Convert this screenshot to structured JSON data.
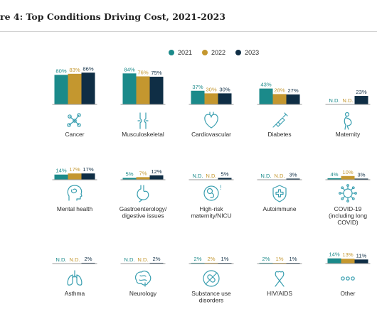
{
  "title": "re 4: Top Conditions Driving Cost, 2021-2023",
  "colors": {
    "2021": "#1b8a8a",
    "2022": "#c4972f",
    "2023": "#0f2e45",
    "icon": "#3a9fb0",
    "axis": "#9a9a9a"
  },
  "legend": [
    "2021",
    "2022",
    "2023"
  ],
  "chart_data": {
    "type": "bar",
    "title": "re 4: Top Conditions Driving Cost, 2021-2023",
    "series_names": [
      "2021",
      "2022",
      "2023"
    ],
    "ylim": [
      0,
      100
    ],
    "categories": [
      {
        "name": "Cancer",
        "label_lines": [
          "Cancer"
        ],
        "icon": "molecule-icon",
        "values": [
          80,
          83,
          86
        ],
        "labels": [
          "80%",
          "83%",
          "86%"
        ]
      },
      {
        "name": "Musculoskeletal",
        "label_lines": [
          "Musculoskeletal"
        ],
        "icon": "joint-icon",
        "values": [
          84,
          76,
          75
        ],
        "labels": [
          "84%",
          "76%",
          "75%"
        ]
      },
      {
        "name": "Cardiovascular",
        "label_lines": [
          "Cardiovascular"
        ],
        "icon": "heart-icon",
        "values": [
          37,
          30,
          30
        ],
        "labels": [
          "37%",
          "30%",
          "30%"
        ]
      },
      {
        "name": "Diabetes",
        "label_lines": [
          "Diabetes"
        ],
        "icon": "syringe-icon",
        "values": [
          43,
          28,
          27
        ],
        "labels": [
          "43%",
          "28%",
          "27%"
        ]
      },
      {
        "name": "Maternity",
        "label_lines": [
          "Maternity"
        ],
        "icon": "pregnancy-icon",
        "values": [
          null,
          null,
          23
        ],
        "labels": [
          "N.D.",
          "N.D.",
          "23%"
        ]
      },
      {
        "name": "Mental health",
        "label_lines": [
          "Mental health"
        ],
        "icon": "head-icon",
        "values": [
          14,
          17,
          17
        ],
        "labels": [
          "14%",
          "17%",
          "17%"
        ]
      },
      {
        "name": "Gastroenterology/ digestive issues",
        "label_lines": [
          "Gastroenterology/",
          "digestive issues"
        ],
        "icon": "stomach-icon",
        "values": [
          5,
          7,
          12
        ],
        "labels": [
          "5%",
          "7%",
          "12%"
        ]
      },
      {
        "name": "High-risk maternity/NICU",
        "label_lines": [
          "High-risk",
          "maternity/NICU"
        ],
        "icon": "fetus-icon",
        "values": [
          null,
          null,
          5
        ],
        "labels": [
          "N.D.",
          "N.D.",
          "5%"
        ]
      },
      {
        "name": "Autoimmune",
        "label_lines": [
          "Autoimmune"
        ],
        "icon": "shield-cross-icon",
        "values": [
          null,
          null,
          3
        ],
        "labels": [
          "N.D.",
          "N.D.",
          "3%"
        ]
      },
      {
        "name": "COVID-19 (including long COVID)",
        "label_lines": [
          "COVID-19",
          "(including long",
          "COVID)"
        ],
        "icon": "virus-icon",
        "values": [
          4,
          10,
          3
        ],
        "labels": [
          "4%",
          "10%",
          "3%"
        ]
      },
      {
        "name": "Asthma",
        "label_lines": [
          "Asthma"
        ],
        "icon": "lungs-icon",
        "values": [
          null,
          null,
          2
        ],
        "labels": [
          "N.D.",
          "N.D.",
          "2%"
        ]
      },
      {
        "name": "Neurology",
        "label_lines": [
          "Neurology"
        ],
        "icon": "brain-icon",
        "values": [
          null,
          null,
          2
        ],
        "labels": [
          "N.D.",
          "N.D.",
          "2%"
        ]
      },
      {
        "name": "Substance use disorders",
        "label_lines": [
          "Substance use",
          "disorders"
        ],
        "icon": "no-pill-icon",
        "values": [
          2,
          2,
          1
        ],
        "labels": [
          "2%",
          "2%",
          "1%"
        ]
      },
      {
        "name": "HIV/AIDS",
        "label_lines": [
          "HIV/AIDS"
        ],
        "icon": "ribbon-icon",
        "values": [
          2,
          1,
          1
        ],
        "labels": [
          "2%",
          "1%",
          "1%"
        ]
      },
      {
        "name": "Other",
        "label_lines": [
          "Other"
        ],
        "icon": "ellipsis-icon",
        "values": [
          14,
          13,
          11
        ],
        "labels": [
          "14%",
          "13%",
          "11%"
        ]
      }
    ]
  }
}
